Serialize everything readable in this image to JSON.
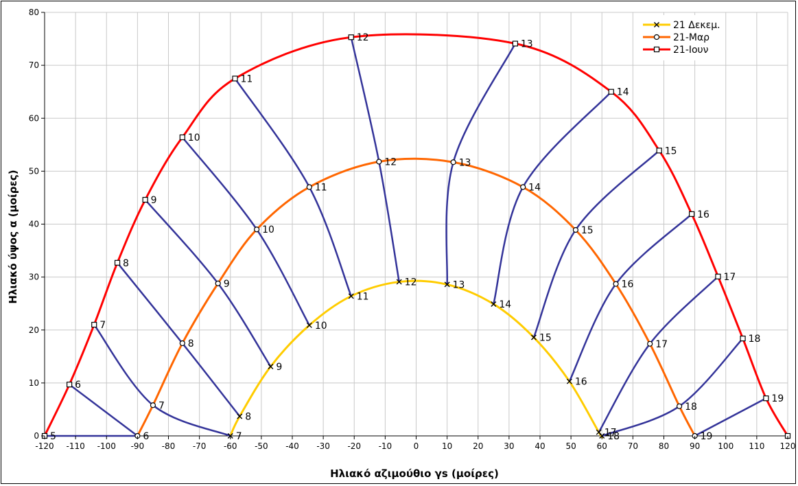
{
  "chart_data": {
    "type": "line",
    "title": "",
    "xlabel": "Ηλιακό αζιμούθιο γs (μοίρες)",
    "ylabel": "Ηλιακό ύψος α (μοίρες)",
    "xlim": [
      -120,
      120
    ],
    "ylim": [
      0,
      80
    ],
    "xticks": [
      -120,
      -110,
      -100,
      -90,
      -80,
      -70,
      -60,
      -50,
      -40,
      -30,
      -20,
      -10,
      0,
      10,
      20,
      30,
      40,
      50,
      60,
      70,
      80,
      90,
      100,
      110,
      120
    ],
    "yticks": [
      0,
      10,
      20,
      30,
      40,
      50,
      60,
      70,
      80
    ],
    "grid": true,
    "legend_position": "top-right",
    "series": [
      {
        "name": "21 Δεκεμ.",
        "color": "#FFCC00",
        "marker": "x",
        "points": [
          {
            "x": -60,
            "y": 0,
            "label": "7"
          },
          {
            "x": -57,
            "y": 3.7,
            "label": "8"
          },
          {
            "x": -47,
            "y": 13.1,
            "label": "9"
          },
          {
            "x": -34.5,
            "y": 20.9,
            "label": "10"
          },
          {
            "x": -21,
            "y": 26.4,
            "label": "11"
          },
          {
            "x": -5.5,
            "y": 29.1,
            "label": "12"
          },
          {
            "x": 10,
            "y": 28.6,
            "label": "13"
          },
          {
            "x": 25,
            "y": 24.9,
            "label": "14"
          },
          {
            "x": 38,
            "y": 18.6,
            "label": "15"
          },
          {
            "x": 49.5,
            "y": 10.3,
            "label": "16"
          },
          {
            "x": 59,
            "y": 0.7,
            "label": "17"
          },
          {
            "x": 60,
            "y": 0,
            "label": "18"
          }
        ]
      },
      {
        "name": "21-Μαρ",
        "color": "#FF6600",
        "marker": "o",
        "points": [
          {
            "x": -90,
            "y": 0,
            "label": "6"
          },
          {
            "x": -85,
            "y": 5.8,
            "label": "7"
          },
          {
            "x": -75.5,
            "y": 17.5,
            "label": "8"
          },
          {
            "x": -64,
            "y": 28.8,
            "label": "9"
          },
          {
            "x": -51.5,
            "y": 39,
            "label": "10"
          },
          {
            "x": -34.5,
            "y": 47,
            "label": "11"
          },
          {
            "x": -12,
            "y": 51.8,
            "label": "12"
          },
          {
            "x": 12,
            "y": 51.7,
            "label": "13"
          },
          {
            "x": 34.5,
            "y": 47,
            "label": "14"
          },
          {
            "x": 51.5,
            "y": 38.9,
            "label": "15"
          },
          {
            "x": 64.5,
            "y": 28.7,
            "label": "16"
          },
          {
            "x": 75.5,
            "y": 17.4,
            "label": "17"
          },
          {
            "x": 85,
            "y": 5.6,
            "label": "18"
          },
          {
            "x": 90,
            "y": 0,
            "label": "19"
          }
        ]
      },
      {
        "name": "21-Ιουν",
        "color": "#FF0000",
        "marker": "square",
        "points": [
          {
            "x": -120,
            "y": 0,
            "label": "5"
          },
          {
            "x": -112,
            "y": 9.7,
            "label": "6"
          },
          {
            "x": -104,
            "y": 21,
            "label": "7"
          },
          {
            "x": -96.5,
            "y": 32.7,
            "label": "8"
          },
          {
            "x": -87.5,
            "y": 44.6,
            "label": "9"
          },
          {
            "x": -75.5,
            "y": 56.4,
            "label": "10"
          },
          {
            "x": -58.5,
            "y": 67.5,
            "label": "11"
          },
          {
            "x": -21,
            "y": 75.3,
            "label": "12"
          },
          {
            "x": 32,
            "y": 74.1,
            "label": "13"
          },
          {
            "x": 63,
            "y": 65,
            "label": "14"
          },
          {
            "x": 78.5,
            "y": 53.9,
            "label": "15"
          },
          {
            "x": 89,
            "y": 41.9,
            "label": "16"
          },
          {
            "x": 97.5,
            "y": 30.1,
            "label": "17"
          },
          {
            "x": 105.5,
            "y": 18.4,
            "label": "18"
          },
          {
            "x": 113,
            "y": 7.1,
            "label": "19"
          },
          {
            "x": 120,
            "y": 0,
            "label": ""
          }
        ]
      }
    ],
    "hour_lines_color": "#333399",
    "hour_lines": [
      {
        "hour": "6",
        "points": [
          [
            -112,
            9.7
          ],
          [
            -90,
            0
          ]
        ]
      },
      {
        "hour": "7",
        "points": [
          [
            -104,
            21
          ],
          [
            -85,
            5.8
          ],
          [
            -60,
            0
          ]
        ]
      },
      {
        "hour": "8",
        "points": [
          [
            -96.5,
            32.7
          ],
          [
            -75.5,
            17.5
          ],
          [
            -57,
            3.7
          ]
        ]
      },
      {
        "hour": "9",
        "points": [
          [
            -87.5,
            44.6
          ],
          [
            -64,
            28.8
          ],
          [
            -47,
            13.1
          ]
        ]
      },
      {
        "hour": "10",
        "points": [
          [
            -75.5,
            56.4
          ],
          [
            -51.5,
            39
          ],
          [
            -34.5,
            20.9
          ]
        ]
      },
      {
        "hour": "11",
        "points": [
          [
            -58.5,
            67.5
          ],
          [
            -34.5,
            47
          ],
          [
            -21,
            26.4
          ]
        ]
      },
      {
        "hour": "12",
        "points": [
          [
            -21,
            75.3
          ],
          [
            -12,
            51.8
          ],
          [
            -5.5,
            29.1
          ]
        ]
      },
      {
        "hour": "13",
        "points": [
          [
            32,
            74.1
          ],
          [
            12,
            51.7
          ],
          [
            10,
            28.6
          ]
        ]
      },
      {
        "hour": "14",
        "points": [
          [
            63,
            65
          ],
          [
            34.5,
            47
          ],
          [
            25,
            24.9
          ]
        ]
      },
      {
        "hour": "15",
        "points": [
          [
            78.5,
            53.9
          ],
          [
            51.5,
            38.9
          ],
          [
            38,
            18.6
          ]
        ]
      },
      {
        "hour": "16",
        "points": [
          [
            89,
            41.9
          ],
          [
            64.5,
            28.7
          ],
          [
            49.5,
            10.3
          ]
        ]
      },
      {
        "hour": "17",
        "points": [
          [
            97.5,
            30.1
          ],
          [
            75.5,
            17.4
          ],
          [
            59,
            0.7
          ]
        ]
      },
      {
        "hour": "18",
        "points": [
          [
            105.5,
            18.4
          ],
          [
            85,
            5.6
          ],
          [
            60,
            0
          ]
        ]
      },
      {
        "hour": "19",
        "points": [
          [
            113,
            7.1
          ],
          [
            90,
            0
          ]
        ]
      },
      {
        "hour": "5",
        "points": [
          [
            -120,
            0
          ],
          [
            -90,
            0
          ]
        ]
      }
    ]
  }
}
